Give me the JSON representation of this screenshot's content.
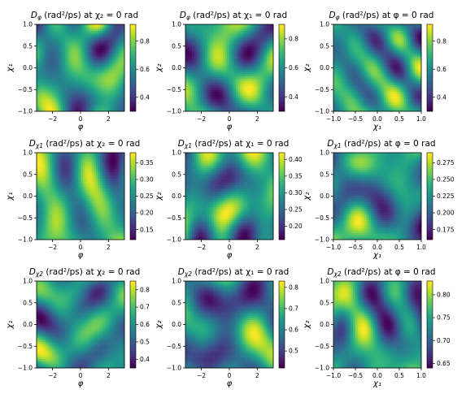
{
  "chart_data": [
    {
      "type": "heatmap",
      "title_main": "D",
      "title_sub": "φ",
      "title_rest": " (rad²/ps) at χ₂ = 0 rad",
      "xlabel": "φ",
      "ylabel": "χ₁",
      "x_ticks": [
        "−2",
        "0",
        "2"
      ],
      "y_ticks": [
        "1.0",
        "0.5",
        "0.0",
        "−0.5",
        "−1.0"
      ],
      "xlim": [
        -3.14,
        3.14
      ],
      "ylim": [
        -1,
        1
      ],
      "cbar_ticks": [
        {
          "v": 0.8,
          "label": "0.8"
        },
        {
          "v": 0.6,
          "label": "0.6"
        },
        {
          "v": 0.4,
          "label": "0.4"
        }
      ],
      "cbar_range": [
        0.3,
        0.92
      ],
      "colormap": "viridis"
    },
    {
      "type": "heatmap",
      "title_main": "D",
      "title_sub": "φ",
      "title_rest": " (rad²/ps) at χ₁ = 0 rad",
      "xlabel": "φ",
      "ylabel": "χ₂",
      "x_ticks": [
        "−2",
        "0",
        "2"
      ],
      "y_ticks": [
        "1.0",
        "0.5",
        "0.0",
        "−0.5",
        "−1.0"
      ],
      "xlim": [
        -3.14,
        3.14
      ],
      "ylim": [
        -1,
        1
      ],
      "cbar_ticks": [
        {
          "v": 0.8,
          "label": "0.8"
        },
        {
          "v": 0.6,
          "label": "0.6"
        },
        {
          "v": 0.4,
          "label": "0.4"
        }
      ],
      "cbar_range": [
        0.3,
        0.9
      ],
      "colormap": "viridis"
    },
    {
      "type": "heatmap",
      "title_main": "D",
      "title_sub": "φ",
      "title_rest": " (rad²/ps) at φ = 0 rad",
      "xlabel": "χ₁",
      "ylabel": "χ₂",
      "x_ticks": [
        "−1.0",
        "−0.5",
        "0.0",
        "0.5",
        "1.0"
      ],
      "y_ticks": [
        "1.0",
        "0.5",
        "0.0",
        "−0.5",
        "−1.0"
      ],
      "xlim": [
        -1,
        1
      ],
      "ylim": [
        -1,
        1
      ],
      "cbar_ticks": [
        {
          "v": 0.8,
          "label": "0.8"
        },
        {
          "v": 0.6,
          "label": "0.6"
        },
        {
          "v": 0.4,
          "label": "0.4"
        }
      ],
      "cbar_range": [
        0.3,
        0.92
      ],
      "colormap": "viridis"
    },
    {
      "type": "heatmap",
      "title_main": "D",
      "title_sub": "χ1",
      "title_rest": " (rad²/ps) at χ₂ = 0 rad",
      "xlabel": "φ",
      "ylabel": "χ₁",
      "x_ticks": [
        "−2",
        "0",
        "2"
      ],
      "y_ticks": [
        "1.0",
        "0.5",
        "0.0",
        "−0.5",
        "−1.0"
      ],
      "xlim": [
        -3.14,
        3.14
      ],
      "ylim": [
        -1,
        1
      ],
      "cbar_ticks": [
        {
          "v": 0.35,
          "label": "0.35"
        },
        {
          "v": 0.3,
          "label": "0.30"
        },
        {
          "v": 0.25,
          "label": "0.25"
        },
        {
          "v": 0.2,
          "label": "0.20"
        },
        {
          "v": 0.15,
          "label": "0.15"
        }
      ],
      "cbar_range": [
        0.12,
        0.38
      ],
      "colormap": "viridis"
    },
    {
      "type": "heatmap",
      "title_main": "D",
      "title_sub": "χ1",
      "title_rest": " (rad²/ps) at χ₁ = 0 rad",
      "xlabel": "φ",
      "ylabel": "χ₂",
      "x_ticks": [
        "−2",
        "0",
        "2"
      ],
      "y_ticks": [
        "1.0",
        "0.5",
        "0.0",
        "−0.5",
        "−1.0"
      ],
      "xlim": [
        -3.14,
        3.14
      ],
      "ylim": [
        -1,
        1
      ],
      "cbar_ticks": [
        {
          "v": 0.4,
          "label": "0.40"
        },
        {
          "v": 0.35,
          "label": "0.35"
        },
        {
          "v": 0.3,
          "label": "0.30"
        },
        {
          "v": 0.25,
          "label": "0.25"
        },
        {
          "v": 0.2,
          "label": "0.20"
        }
      ],
      "cbar_range": [
        0.16,
        0.42
      ],
      "colormap": "viridis"
    },
    {
      "type": "heatmap",
      "title_main": "D",
      "title_sub": "χ1",
      "title_rest": " (rad²/ps) at φ = 0 rad",
      "xlabel": "χ₁",
      "ylabel": "χ₂",
      "x_ticks": [
        "−1.0",
        "−0.5",
        "0.0",
        "0.5",
        "1.0"
      ],
      "y_ticks": [
        "1.0",
        "0.5",
        "0.0",
        "−0.5",
        "−1.0"
      ],
      "xlim": [
        -1,
        1
      ],
      "ylim": [
        -1,
        1
      ],
      "cbar_ticks": [
        {
          "v": 0.275,
          "label": "0.275"
        },
        {
          "v": 0.25,
          "label": "0.250"
        },
        {
          "v": 0.225,
          "label": "0.225"
        },
        {
          "v": 0.2,
          "label": "0.200"
        },
        {
          "v": 0.175,
          "label": "0.175"
        }
      ],
      "cbar_range": [
        0.16,
        0.29
      ],
      "colormap": "viridis"
    },
    {
      "type": "heatmap",
      "title_main": "D",
      "title_sub": "χ2",
      "title_rest": " (rad²/ps) at χ₂ = 0 rad",
      "xlabel": "φ",
      "ylabel": "χ₁",
      "x_ticks": [
        "−2",
        "0",
        "2"
      ],
      "y_ticks": [
        "1.0",
        "0.5",
        "0.0",
        "−0.5",
        "−1.0"
      ],
      "xlim": [
        -3.14,
        3.14
      ],
      "ylim": [
        -1,
        1
      ],
      "cbar_ticks": [
        {
          "v": 0.8,
          "label": "0.8"
        },
        {
          "v": 0.7,
          "label": "0.7"
        },
        {
          "v": 0.6,
          "label": "0.6"
        },
        {
          "v": 0.5,
          "label": "0.5"
        },
        {
          "v": 0.4,
          "label": "0.4"
        }
      ],
      "cbar_range": [
        0.35,
        0.85
      ],
      "colormap": "viridis"
    },
    {
      "type": "heatmap",
      "title_main": "D",
      "title_sub": "χ2",
      "title_rest": " (rad²/ps) at χ₁ = 0 rad",
      "xlabel": "φ",
      "ylabel": "χ₂",
      "x_ticks": [
        "−2",
        "0",
        "2"
      ],
      "y_ticks": [
        "1.0",
        "0.5",
        "0.0",
        "−0.5",
        "−1.0"
      ],
      "xlim": [
        -3.14,
        3.14
      ],
      "ylim": [
        -1,
        1
      ],
      "cbar_ticks": [
        {
          "v": 0.8,
          "label": "0.8"
        },
        {
          "v": 0.7,
          "label": "0.7"
        },
        {
          "v": 0.6,
          "label": "0.6"
        },
        {
          "v": 0.5,
          "label": "0.5"
        }
      ],
      "cbar_range": [
        0.42,
        0.83
      ],
      "colormap": "viridis"
    },
    {
      "type": "heatmap",
      "title_main": "D",
      "title_sub": "χ2",
      "title_rest": " (rad²/ps) at φ = 0 rad",
      "xlabel": "χ₁",
      "ylabel": "χ₂",
      "x_ticks": [
        "−1.0",
        "−0.5",
        "0.0",
        "0.5",
        "1.0"
      ],
      "y_ticks": [
        "1.0",
        "0.5",
        "0.0",
        "−0.5",
        "−1.0"
      ],
      "xlim": [
        -1,
        1
      ],
      "ylim": [
        -1,
        1
      ],
      "cbar_ticks": [
        {
          "v": 0.8,
          "label": "0.80"
        },
        {
          "v": 0.75,
          "label": "0.75"
        },
        {
          "v": 0.7,
          "label": "0.70"
        },
        {
          "v": 0.65,
          "label": "0.65"
        }
      ],
      "cbar_range": [
        0.64,
        0.83
      ],
      "colormap": "viridis"
    }
  ],
  "colors": {
    "viridis_low": "#440154",
    "viridis_midlow": "#3b528b",
    "viridis_mid": "#21918c",
    "viridis_midhigh": "#5ec962",
    "viridis_high": "#fde725"
  }
}
